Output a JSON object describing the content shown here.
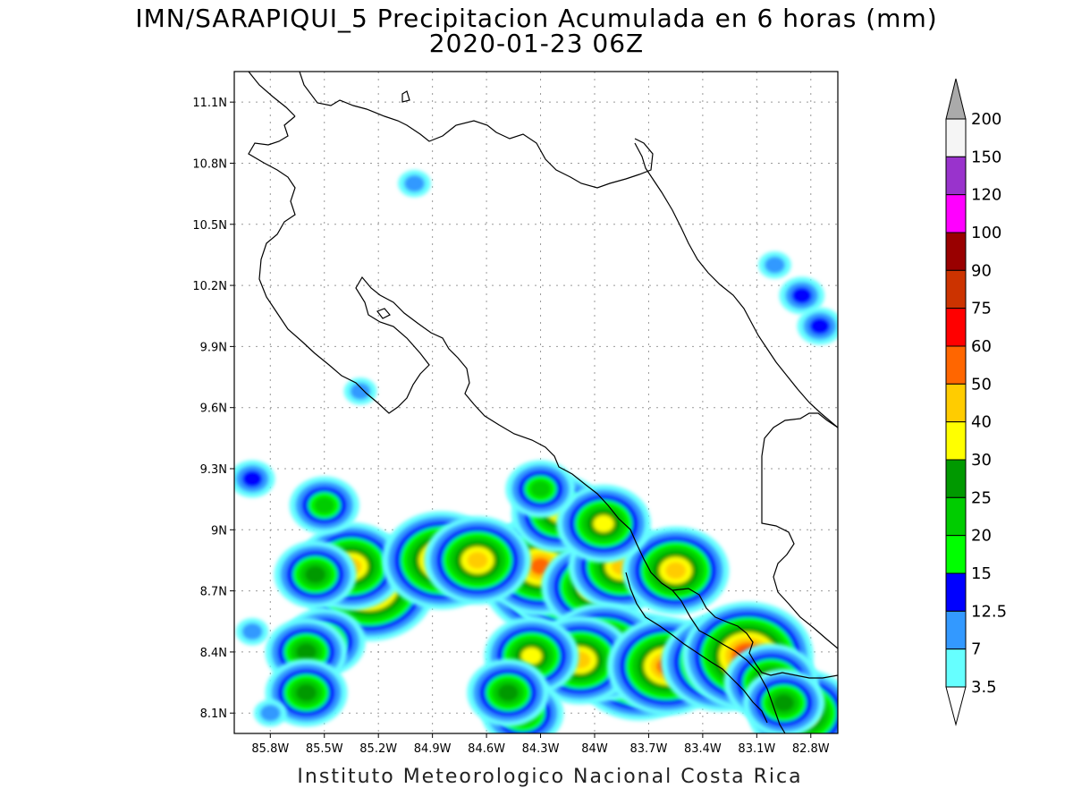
{
  "title": {
    "line1": "IMN/SARAPIQUI_5 Precipitacion Acumulada en 6 horas (mm)",
    "line2": "2020-01-23 06Z"
  },
  "footer": "Instituto Meteorologico Nacional Costa Rica",
  "map": {
    "lon_range": [
      -86.0,
      -82.65
    ],
    "lat_range": [
      8.0,
      11.25
    ],
    "lat_ticks": [
      {
        "value": 11.1,
        "label": "11.1N"
      },
      {
        "value": 10.8,
        "label": "10.8N"
      },
      {
        "value": 10.5,
        "label": "10.5N"
      },
      {
        "value": 10.2,
        "label": "10.2N"
      },
      {
        "value": 9.9,
        "label": "9.9N"
      },
      {
        "value": 9.6,
        "label": "9.6N"
      },
      {
        "value": 9.3,
        "label": "9.3N"
      },
      {
        "value": 9.0,
        "label": "9N"
      },
      {
        "value": 8.7,
        "label": "8.7N"
      },
      {
        "value": 8.4,
        "label": "8.4N"
      },
      {
        "value": 8.1,
        "label": "8.1N"
      }
    ],
    "lon_ticks": [
      {
        "value": -85.8,
        "label": "85.8W"
      },
      {
        "value": -85.5,
        "label": "85.5W"
      },
      {
        "value": -85.2,
        "label": "85.2W"
      },
      {
        "value": -84.9,
        "label": "84.9W"
      },
      {
        "value": -84.6,
        "label": "84.6W"
      },
      {
        "value": -84.3,
        "label": "84.3W"
      },
      {
        "value": -84.0,
        "label": "84W"
      },
      {
        "value": -83.7,
        "label": "83.7W"
      },
      {
        "value": -83.4,
        "label": "83.4W"
      },
      {
        "value": -83.1,
        "label": "83.1W"
      },
      {
        "value": -82.8,
        "label": "82.8W"
      }
    ],
    "grid": "dotted"
  },
  "colorbar": {
    "levels": [
      "3.5",
      "7",
      "12.5",
      "15",
      "20",
      "25",
      "30",
      "40",
      "50",
      "60",
      "75",
      "90",
      "100",
      "120",
      "150",
      "200"
    ],
    "colors": [
      "#66ffff",
      "#3399ff",
      "#0000ff",
      "#00ff00",
      "#00cc00",
      "#009900",
      "#ffff00",
      "#ffcc00",
      "#ff6600",
      "#ff0000",
      "#cc3300",
      "#990000",
      "#ff00ff",
      "#9933cc",
      "#f5f5f5"
    ],
    "top_arrow_color": "#aaaaaa",
    "bottom_arrow_color": "#ffffff"
  },
  "precip_cells": [
    {
      "lon": -84.2,
      "lat": 8.78,
      "level": 11
    },
    {
      "lon": -84.12,
      "lat": 8.74,
      "level": 9
    },
    {
      "lon": -84.3,
      "lat": 8.82,
      "level": 8
    },
    {
      "lon": -85.25,
      "lat": 8.72,
      "level": 9
    },
    {
      "lon": -85.35,
      "lat": 8.82,
      "level": 7
    },
    {
      "lon": -85.55,
      "lat": 8.78,
      "level": 5
    },
    {
      "lon": -84.85,
      "lat": 8.85,
      "level": 8
    },
    {
      "lon": -84.65,
      "lat": 8.85,
      "level": 7
    },
    {
      "lon": -84.0,
      "lat": 8.72,
      "level": 7
    },
    {
      "lon": -83.85,
      "lat": 8.82,
      "level": 7
    },
    {
      "lon": -83.75,
      "lat": 8.33,
      "level": 9
    },
    {
      "lon": -83.95,
      "lat": 8.4,
      "level": 8
    },
    {
      "lon": -84.08,
      "lat": 8.36,
      "level": 7
    },
    {
      "lon": -83.6,
      "lat": 8.33,
      "level": 8
    },
    {
      "lon": -83.3,
      "lat": 8.35,
      "level": 8
    },
    {
      "lon": -83.15,
      "lat": 8.38,
      "level": 9
    },
    {
      "lon": -82.85,
      "lat": 8.1,
      "level": 7
    },
    {
      "lon": -83.55,
      "lat": 8.8,
      "level": 7
    },
    {
      "lon": -84.2,
      "lat": 9.08,
      "level": 6
    },
    {
      "lon": -83.95,
      "lat": 9.03,
      "level": 6
    },
    {
      "lon": -84.35,
      "lat": 8.38,
      "level": 6
    },
    {
      "lon": -84.4,
      "lat": 8.1,
      "level": 5
    },
    {
      "lon": -84.48,
      "lat": 8.2,
      "level": 5
    },
    {
      "lon": -85.5,
      "lat": 8.45,
      "level": 5
    },
    {
      "lon": -85.6,
      "lat": 8.4,
      "level": 5
    },
    {
      "lon": -85.6,
      "lat": 8.2,
      "level": 5
    },
    {
      "lon": -85.5,
      "lat": 9.12,
      "level": 4
    },
    {
      "lon": -84.3,
      "lat": 9.2,
      "level": 4
    },
    {
      "lon": -82.85,
      "lat": 10.15,
      "level": 2
    },
    {
      "lon": -82.75,
      "lat": 10.0,
      "level": 2
    },
    {
      "lon": -83.0,
      "lat": 10.3,
      "level": 1
    },
    {
      "lon": -85.9,
      "lat": 9.25,
      "level": 2
    },
    {
      "lon": -85.9,
      "lat": 8.5,
      "level": 1
    },
    {
      "lon": -85.8,
      "lat": 8.1,
      "level": 1
    },
    {
      "lon": -85.0,
      "lat": 10.7,
      "level": 1
    },
    {
      "lon": -85.3,
      "lat": 9.68,
      "level": 1
    },
    {
      "lon": -83.02,
      "lat": 8.25,
      "level": 6
    },
    {
      "lon": -82.95,
      "lat": 8.15,
      "level": 5
    }
  ]
}
